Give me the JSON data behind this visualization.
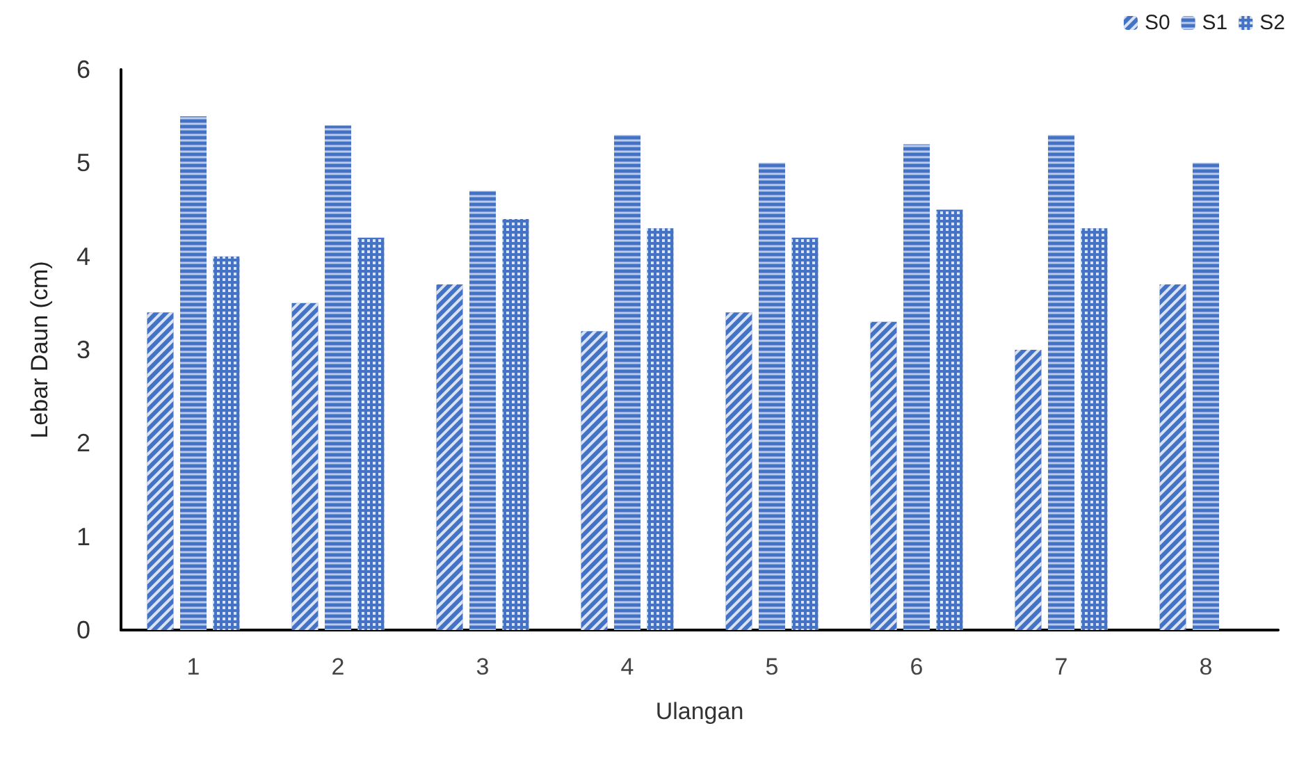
{
  "chart_data": {
    "type": "bar",
    "xlabel": "Ulangan",
    "ylabel": "Lebar Daun (cm)",
    "categories": [
      "1",
      "2",
      "3",
      "4",
      "5",
      "6",
      "7",
      "8"
    ],
    "series": [
      {
        "name": "S0",
        "color": "#4472c4",
        "values": [
          3.4,
          3.5,
          3.7,
          3.2,
          3.4,
          3.3,
          3.0,
          3.7
        ]
      },
      {
        "name": "S1",
        "color": "#4472c4",
        "values": [
          5.5,
          5.4,
          4.7,
          5.3,
          5.0,
          5.2,
          5.3,
          5.0
        ]
      },
      {
        "name": "S2",
        "color": "#4472c4",
        "values": [
          4.0,
          4.2,
          4.4,
          4.3,
          4.2,
          4.5,
          4.3,
          null
        ]
      }
    ],
    "ylim": [
      0,
      6
    ],
    "yticks": [
      0,
      1,
      2,
      3,
      4,
      5,
      6
    ],
    "grid": false,
    "legend": "top right"
  }
}
